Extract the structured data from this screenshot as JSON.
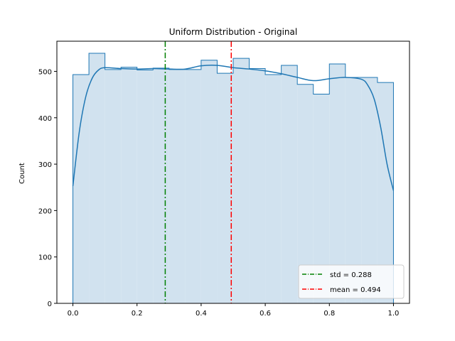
{
  "chart_data": {
    "type": "histogram",
    "title": "Uniform Distribution - Original",
    "xlabel": "",
    "ylabel": "Count",
    "xlim": [
      -0.05,
      1.05
    ],
    "ylim": [
      0,
      565
    ],
    "xticks": [
      0.0,
      0.2,
      0.4,
      0.6,
      0.8,
      1.0
    ],
    "xtick_labels": [
      "0.0",
      "0.2",
      "0.4",
      "0.6",
      "0.8",
      "1.0"
    ],
    "yticks": [
      0,
      100,
      200,
      300,
      400,
      500
    ],
    "ytick_labels": [
      "0",
      "100",
      "200",
      "300",
      "400",
      "500"
    ],
    "bin_edges": [
      0.0,
      0.05,
      0.1,
      0.15,
      0.2,
      0.25,
      0.3,
      0.35,
      0.4,
      0.45,
      0.5,
      0.55,
      0.6,
      0.65,
      0.7,
      0.75,
      0.8,
      0.85,
      0.9,
      0.95,
      1.0
    ],
    "counts": [
      493,
      539,
      504,
      509,
      503,
      507,
      504,
      504,
      524,
      496,
      528,
      506,
      493,
      513,
      472,
      451,
      516,
      487,
      487,
      476
    ],
    "kde": {
      "x": [
        0.0,
        0.02,
        0.04,
        0.06,
        0.08,
        0.1,
        0.15,
        0.2,
        0.25,
        0.3,
        0.35,
        0.4,
        0.45,
        0.5,
        0.55,
        0.6,
        0.65,
        0.7,
        0.75,
        0.8,
        0.85,
        0.9,
        0.92,
        0.94,
        0.96,
        0.98,
        1.0
      ],
      "y": [
        253,
        370,
        445,
        485,
        503,
        508,
        506,
        505,
        506,
        505,
        505,
        512,
        513,
        508,
        505,
        501,
        495,
        487,
        480,
        484,
        487,
        483,
        470,
        440,
        380,
        300,
        243
      ]
    },
    "vlines": [
      {
        "x": 0.288,
        "color": "#008000",
        "label": "std = 0.288"
      },
      {
        "x": 0.494,
        "color": "#ff0000",
        "label": "mean = 0.494"
      }
    ],
    "colors": {
      "fill": "#d1e2ef",
      "edge": "#1f77b4",
      "kde": "#1f77b4"
    },
    "grid": false,
    "legend_position": "lower right"
  }
}
